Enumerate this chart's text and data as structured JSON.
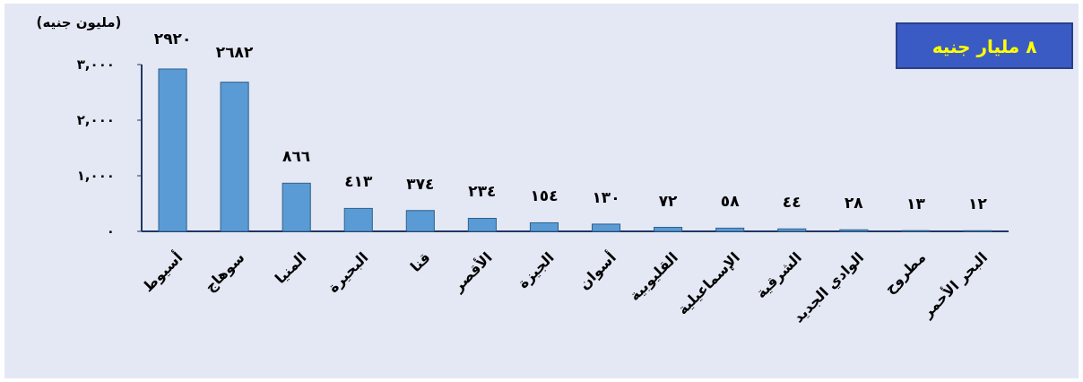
{
  "chart_data": {
    "type": "bar",
    "ylabel": "(مليون جنيه)",
    "categories": [
      "أسيوط",
      "سوهاج",
      "المنيا",
      "البحيرة",
      "قنا",
      "الأقصر",
      "الجيزة",
      "أسوان",
      "القليوبية",
      "الإسماعيلية",
      "الشرقية",
      "الوادي الجديد",
      "مطروح",
      "البحر الأحمر"
    ],
    "values": [
      2920,
      2682,
      866,
      413,
      374,
      234,
      154,
      130,
      72,
      58,
      44,
      28,
      13,
      12
    ],
    "value_labels": [
      "٢٩٢٠",
      "٢٦٨٢",
      "٨٦٦",
      "٤١٣",
      "٣٧٤",
      "٢٣٤",
      "١٥٤",
      "١٣٠",
      "٧٢",
      "٥٨",
      "٤٤",
      "٢٨",
      "١٣",
      "١٢"
    ],
    "color": "#5b9bd5",
    "ylim": [
      0,
      3000
    ],
    "yticks": [
      {
        "value": 0,
        "label": "٠"
      },
      {
        "value": 1000,
        "label": "١,٠٠٠"
      },
      {
        "value": 2000,
        "label": "٢,٠٠٠"
      },
      {
        "value": 3000,
        "label": "٣,٠٠٠"
      }
    ],
    "annotations": [
      "٨ مليار جنيه"
    ]
  }
}
